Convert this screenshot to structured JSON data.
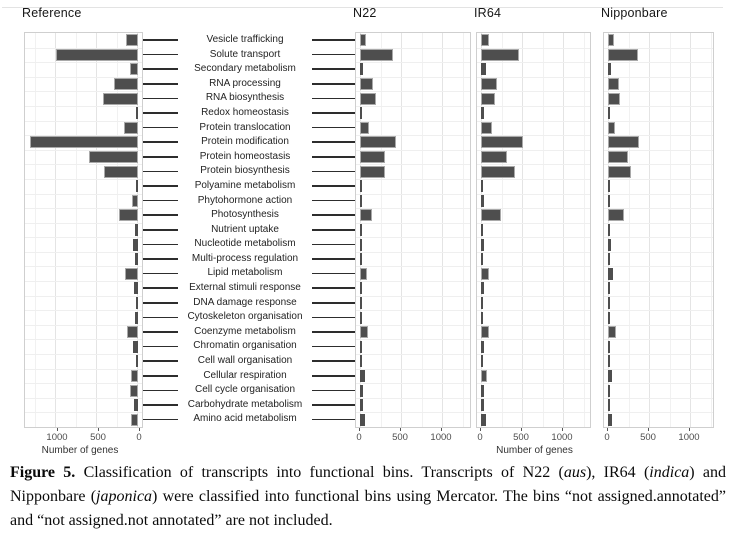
{
  "chart_data": {
    "type": "bar",
    "orientation": "horizontal",
    "xlabel": "Number of genes",
    "xlim": [
      0,
      1400
    ],
    "xticks": [
      0,
      500,
      1000
    ],
    "gridline_step": 250,
    "grid": true,
    "bar_color": "#4e4e4e",
    "categories": [
      "Vesicle trafficking",
      "Solute transport",
      "Secondary metabolism",
      "RNA processing",
      "RNA biosynthesis",
      "Redox homeostasis",
      "Protein translocation",
      "Protein modification",
      "Protein homeostasis",
      "Protein biosynthesis",
      "Polyamine metabolism",
      "Phytohormone action",
      "Photosynthesis",
      "Nutrient uptake",
      "Nucleotide metabolism",
      "Multi-process regulation",
      "Lipid metabolism",
      "External stimuli response",
      "DNA damage response",
      "Cytoskeleton organisation",
      "Coenzyme metabolism",
      "Chromatin organisation",
      "Cell wall organisation",
      "Cellular respiration",
      "Cell cycle organisation",
      "Carbohydrate metabolism",
      "Amino acid metabolism"
    ],
    "series": [
      {
        "name": "Reference",
        "axis_reversed": true,
        "values": [
          145,
          1000,
          100,
          290,
          430,
          25,
          165,
          1320,
          600,
          410,
          10,
          75,
          235,
          40,
          60,
          40,
          160,
          50,
          10,
          40,
          140,
          60,
          8,
          90,
          100,
          50,
          90
        ]
      },
      {
        "name": "N22",
        "axis_reversed": false,
        "values": [
          75,
          405,
          40,
          160,
          190,
          20,
          110,
          435,
          305,
          305,
          8,
          30,
          150,
          20,
          30,
          20,
          80,
          30,
          6,
          20,
          100,
          30,
          5,
          55,
          35,
          35,
          55
        ]
      },
      {
        "name": "IR64",
        "axis_reversed": false,
        "values": [
          95,
          460,
          55,
          200,
          170,
          35,
          130,
          515,
          320,
          420,
          10,
          35,
          245,
          30,
          40,
          25,
          95,
          35,
          8,
          25,
          100,
          35,
          8,
          70,
          35,
          35,
          55
        ]
      },
      {
        "name": "Nipponbare",
        "axis_reversed": false,
        "values": [
          70,
          370,
          35,
          140,
          150,
          25,
          90,
          380,
          245,
          280,
          8,
          30,
          200,
          15,
          35,
          20,
          60,
          25,
          8,
          20,
          95,
          30,
          8,
          50,
          30,
          30,
          45
        ]
      }
    ]
  },
  "caption": {
    "label": "Figure 5.",
    "segments": [
      {
        "t": " Classification of transcripts into functional bins. Transcripts of N22 (",
        "s": "n"
      },
      {
        "t": "aus",
        "s": "i"
      },
      {
        "t": "), IR64 (",
        "s": "n"
      },
      {
        "t": "indica",
        "s": "i"
      },
      {
        "t": ") and Nipponbare (",
        "s": "n"
      },
      {
        "t": "japonica",
        "s": "i"
      },
      {
        "t": ") were classified into functional bins using Mercator. The bins “not assigned.annotated” and “not assigned.not annotated” are not included.",
        "s": "n"
      }
    ]
  }
}
